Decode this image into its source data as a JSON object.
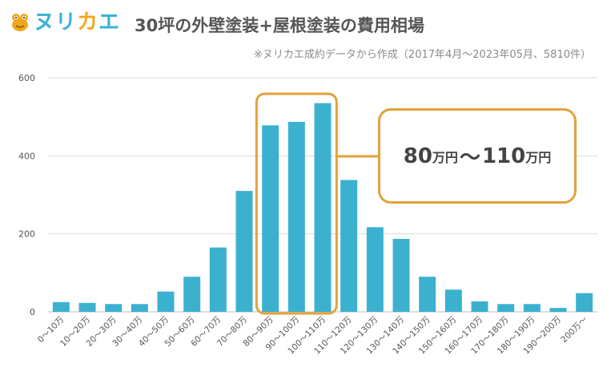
{
  "brand": {
    "part1": "ヌリ",
    "part2": "カ",
    "part3": "エ",
    "icon": "frog-mascot-icon"
  },
  "title": "30坪の外壁塗装+屋根塗装の費用相場",
  "source_note": "※ヌリカエ成約データから作成（2017年4月～2023年05月、5810件）",
  "callout": {
    "from_num": "80",
    "from_unit": "万円",
    "sep": "～",
    "to_num": "110",
    "to_unit": "万円"
  },
  "colors": {
    "bar": "#3cb1cf",
    "highlight": "#e3a23a",
    "grid": "#d9d9d9",
    "brand_blue": "#3ab4d6",
    "brand_orange": "#f2a81e"
  },
  "chart_data": {
    "type": "bar",
    "categories": [
      "0～10万",
      "10～20万",
      "20～30万",
      "30～40万",
      "40～50万",
      "50～60万",
      "60～70万",
      "70～80万",
      "80～90万",
      "90～100万",
      "100～110万",
      "110～120万",
      "120～130万",
      "130～140万",
      "140～150万",
      "150～160万",
      "160～170万",
      "170～180万",
      "180～190万",
      "190～200万",
      "200万～"
    ],
    "values": [
      25,
      23,
      20,
      20,
      52,
      90,
      165,
      310,
      478,
      487,
      535,
      338,
      217,
      187,
      90,
      57,
      27,
      20,
      20,
      10,
      48
    ],
    "ylim": [
      0,
      600
    ],
    "yticks": [
      "0",
      "200",
      "400",
      "600"
    ],
    "grid": true,
    "highlight_categories": [
      "80～90万",
      "90～100万",
      "100～110万"
    ]
  }
}
